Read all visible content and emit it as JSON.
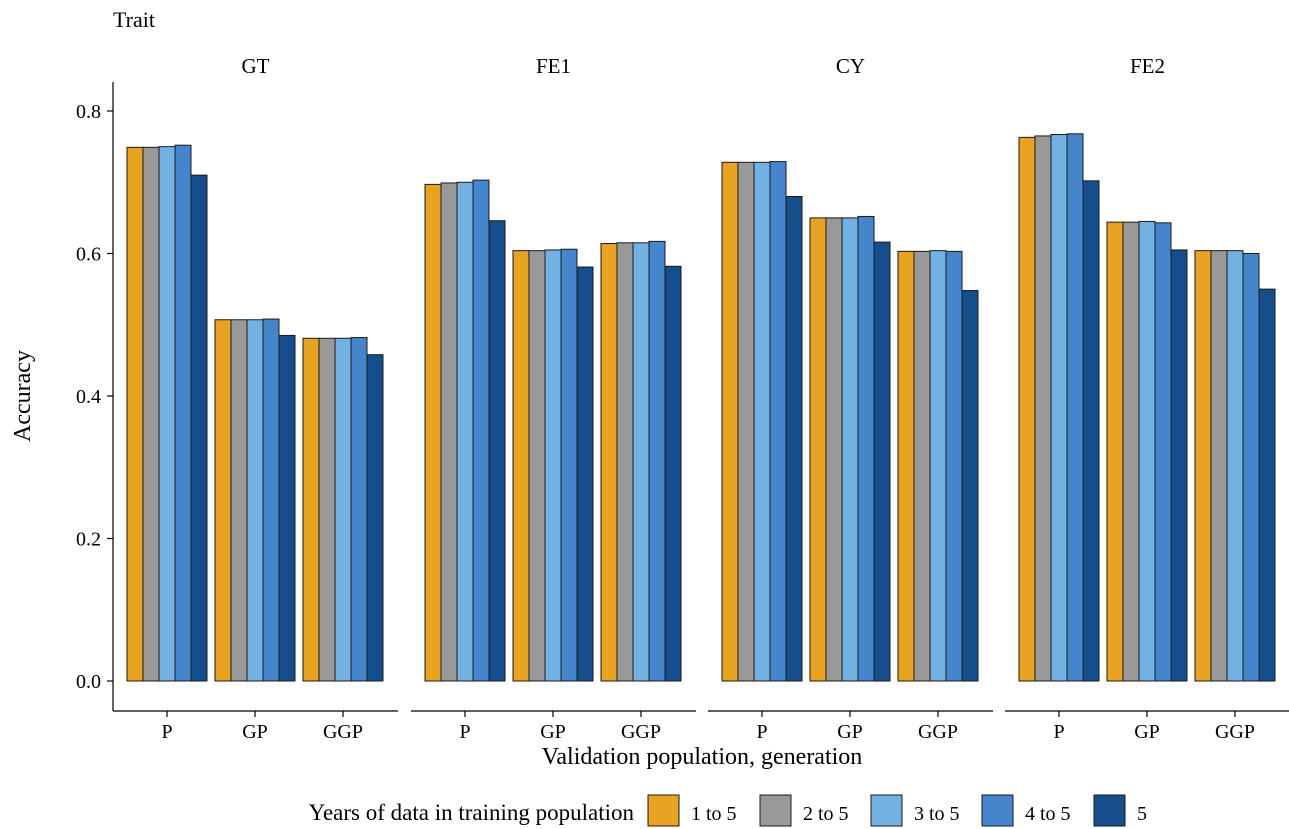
{
  "chart_data": {
    "type": "bar",
    "facet_label": "Trait",
    "xlabel": "Validation population, generation",
    "ylabel": "Accuracy",
    "ylim": [
      0,
      0.84
    ],
    "yticks": [
      0.0,
      0.2,
      0.4,
      0.6,
      0.8
    ],
    "ytick_labels": [
      "0.0",
      "0.2",
      "0.4",
      "0.6",
      "0.8"
    ],
    "grid": false,
    "categories": [
      "P",
      "GP",
      "GGP"
    ],
    "legend": {
      "title": "Years of data in training population",
      "position": "bottom",
      "entries": [
        "1 to 5",
        "2 to 5",
        "3 to 5",
        "4 to 5",
        "5"
      ],
      "colors": [
        "#E8A323",
        "#999999",
        "#74B1E3",
        "#4585CC",
        "#164E8C"
      ]
    },
    "facets": [
      {
        "title": "GT",
        "values": [
          [
            0.749,
            0.749,
            0.75,
            0.752,
            0.71
          ],
          [
            0.507,
            0.507,
            0.507,
            0.508,
            0.485
          ],
          [
            0.481,
            0.481,
            0.481,
            0.482,
            0.458
          ]
        ]
      },
      {
        "title": "FE1",
        "values": [
          [
            0.697,
            0.699,
            0.7,
            0.703,
            0.646
          ],
          [
            0.604,
            0.604,
            0.605,
            0.606,
            0.581
          ],
          [
            0.614,
            0.615,
            0.615,
            0.617,
            0.582
          ]
        ]
      },
      {
        "title": "CY",
        "values": [
          [
            0.728,
            0.728,
            0.728,
            0.729,
            0.68
          ],
          [
            0.65,
            0.65,
            0.65,
            0.652,
            0.616
          ],
          [
            0.603,
            0.603,
            0.604,
            0.603,
            0.548
          ]
        ]
      },
      {
        "title": "FE2",
        "values": [
          [
            0.763,
            0.765,
            0.767,
            0.768,
            0.702
          ],
          [
            0.644,
            0.644,
            0.645,
            0.643,
            0.605
          ],
          [
            0.604,
            0.604,
            0.604,
            0.6,
            0.55
          ]
        ]
      }
    ]
  }
}
